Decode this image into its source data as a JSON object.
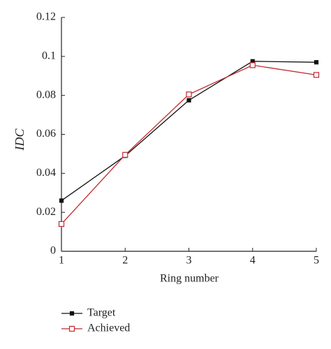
{
  "chart_data": {
    "type": "line",
    "x_label": "Ring number",
    "y_label": "IDC",
    "x": [
      1,
      2,
      3,
      4,
      5
    ],
    "series": [
      {
        "name": "Target",
        "color": "#111111",
        "marker": "filled-square",
        "values": [
          0.026,
          0.049,
          0.0775,
          0.0975,
          0.097
        ]
      },
      {
        "name": "Achieved",
        "color": "#c0282d",
        "marker": "open-square",
        "values": [
          0.014,
          0.0495,
          0.0805,
          0.0955,
          0.0905
        ]
      }
    ],
    "xlim": [
      1,
      5
    ],
    "xticks": [
      1,
      2,
      3,
      4,
      5
    ],
    "ylim": [
      0,
      0.12
    ],
    "yticks": [
      0,
      0.02,
      0.04,
      0.06,
      0.08,
      0.1,
      0.12
    ],
    "grid": false
  }
}
